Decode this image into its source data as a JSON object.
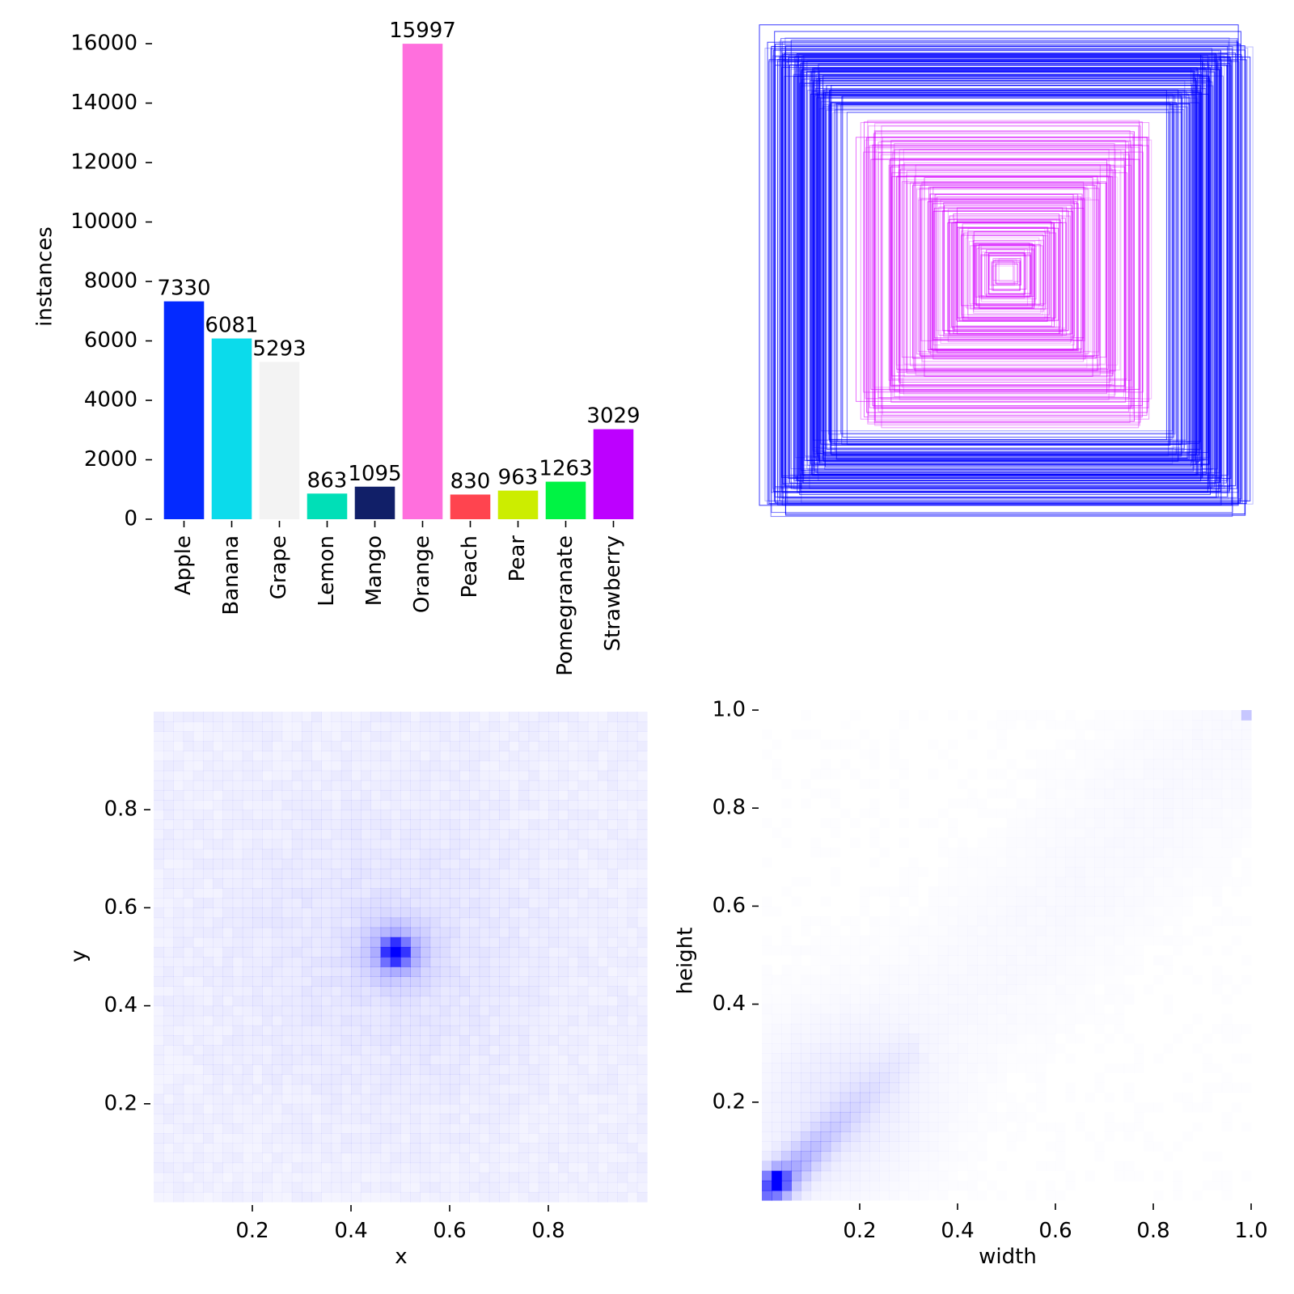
{
  "chart_data": [
    {
      "type": "bar",
      "categories": [
        "Apple",
        "Banana",
        "Grape",
        "Lemon",
        "Mango",
        "Orange",
        "Peach",
        "Pear",
        "Pomegranate",
        "Strawberry"
      ],
      "values": [
        7330,
        6081,
        5293,
        863,
        1095,
        15997,
        830,
        963,
        1263,
        3029
      ],
      "value_labels": [
        "7330",
        "6081",
        "5293",
        "863",
        "1095",
        "15997",
        "830",
        "963",
        "1263",
        "3029"
      ],
      "colors": [
        "#042aff",
        "#0bdbeb",
        "#f3f3f3",
        "#00dfb7",
        "#111f68",
        "#ff6fdd",
        "#ff444f",
        "#cced00",
        "#00f344",
        "#bd00ff"
      ],
      "ylabel": "instances",
      "xlabel": "",
      "ylim": [
        0,
        16000
      ],
      "yticks": [
        0,
        2000,
        4000,
        6000,
        8000,
        10000,
        12000,
        14000,
        16000
      ],
      "ytick_labels": [
        "0",
        "2000",
        "4000",
        "6000",
        "8000",
        "10000",
        "12000",
        "14000",
        "16000"
      ]
    },
    {
      "type": "other",
      "description_kind": "overlaid-bounding-boxes",
      "series": [
        {
          "name": "large boxes",
          "color": "#0000ff"
        },
        {
          "name": "small boxes",
          "color": "#d400ff"
        }
      ]
    },
    {
      "type": "heatmap",
      "xlabel": "x",
      "ylabel": "y",
      "xlim": [
        0,
        1
      ],
      "ylim": [
        0,
        1
      ],
      "xticks": [
        0.2,
        0.4,
        0.6,
        0.8
      ],
      "xtick_labels": [
        "0.2",
        "0.4",
        "0.6",
        "0.8"
      ],
      "yticks": [
        0.2,
        0.4,
        0.6,
        0.8
      ],
      "ytick_labels": [
        "0.2",
        "0.4",
        "0.6",
        "0.8"
      ],
      "peak": {
        "x": 0.49,
        "y": 0.51
      },
      "color": "#0000ff"
    },
    {
      "type": "heatmap",
      "xlabel": "width",
      "ylabel": "height",
      "xlim": [
        0,
        1
      ],
      "ylim": [
        0,
        1
      ],
      "xticks": [
        0.2,
        0.4,
        0.6,
        0.8,
        1.0
      ],
      "xtick_labels": [
        "0.2",
        "0.4",
        "0.6",
        "0.8",
        "1.0"
      ],
      "yticks": [
        0.2,
        0.4,
        0.6,
        0.8,
        1.0
      ],
      "ytick_labels": [
        "0.2",
        "0.4",
        "0.6",
        "0.8",
        "1.0"
      ],
      "peak": {
        "x": 0.03,
        "y": 0.04
      },
      "color": "#0000ff"
    }
  ]
}
